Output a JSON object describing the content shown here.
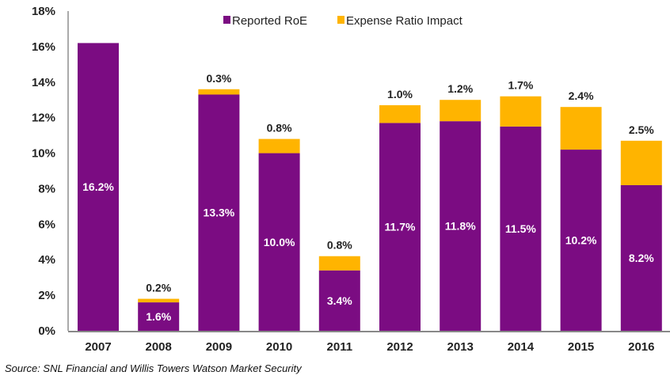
{
  "chart_data": {
    "type": "bar",
    "stacked": true,
    "categories": [
      "2007",
      "2008",
      "2009",
      "2010",
      "2011",
      "2012",
      "2013",
      "2014",
      "2015",
      "2016"
    ],
    "series": [
      {
        "name": "Reported RoE",
        "color": "#7B0C82",
        "values": [
          16.2,
          1.6,
          13.3,
          10.0,
          3.4,
          11.7,
          11.8,
          11.5,
          10.2,
          8.2
        ],
        "labels": [
          "16.2%",
          "1.6%",
          "13.3%",
          "10.0%",
          "3.4%",
          "11.7%",
          "11.8%",
          "11.5%",
          "10.2%",
          "8.2%"
        ]
      },
      {
        "name": "Expense Ratio Impact",
        "color": "#FFB400",
        "values": [
          0,
          0.2,
          0.3,
          0.8,
          0.8,
          1.0,
          1.2,
          1.7,
          2.4,
          2.5
        ],
        "labels": [
          "",
          "0.2%",
          "0.3%",
          "0.8%",
          "0.8%",
          "1.0%",
          "1.2%",
          "1.7%",
          "2.4%",
          "2.5%"
        ]
      }
    ],
    "ylim": [
      0,
      18
    ],
    "yticks": [
      "0%",
      "2%",
      "4%",
      "6%",
      "8%",
      "10%",
      "12%",
      "14%",
      "16%",
      "18%"
    ],
    "grid": false,
    "legend": "top-center",
    "xlabel": "",
    "ylabel": ""
  },
  "source": "Source: SNL Financial and Willis Towers Watson Market Security"
}
